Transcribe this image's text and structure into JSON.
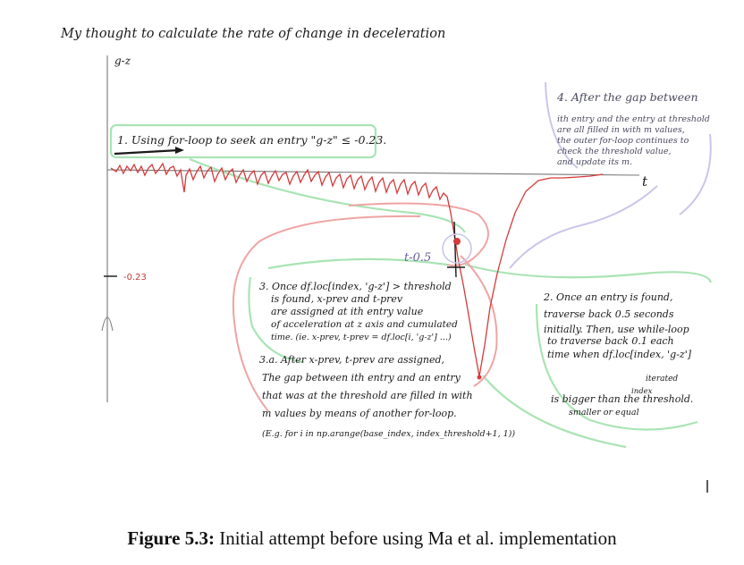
{
  "title": "My thought to calculate the rate of change in deceleration",
  "axis": {
    "y_label": "g-z",
    "x_label": "t",
    "threshold_label": "-0.23"
  },
  "point_label": "t-0.5",
  "notes": {
    "n1": "1. Using for-loop to seek an entry \"g-z\" ≤ -0.23.",
    "n2": [
      "2. Once an entry is found,",
      "traverse back 0.5 seconds",
      "initially. Then, use while-loop",
      "to traverse back 0.1 each",
      "time when df.loc[index, 'g-z']",
      "is bigger than the threshold.",
      "iterated",
      "index",
      "smaller or equal"
    ],
    "n3": [
      "3. Once df.loc[index, 'g-z'] > threshold",
      "is found, x-prev and t-prev",
      "are assigned at ith entry value",
      "of acceleration at z axis and cumulated",
      "time. (ie. x-prev, t-prev = df.loc[i, 'g-z'] ...)"
    ],
    "n3a": [
      "3.a. After x-prev, t-prev are assigned,",
      "The gap between ith entry and an entry",
      "that was at the threshold are filled in with",
      "m values by means of another for-loop.",
      "(E.g. for i in np.arange(base_index, index_threshold+1, 1))"
    ],
    "n4": [
      "4. After the gap between",
      "ith entry and the entry at threshold",
      "are all filled in with m values,",
      "the outer for-loop continues to",
      "check the threshold value,",
      "and update its m."
    ]
  },
  "caption": {
    "label": "Figure 5.3:",
    "text": "Initial attempt before using Ma et al. implementation"
  },
  "colors": {
    "ink": "#1a1a1a",
    "signal": "#d63a3a",
    "loop_red": "#f0a4a4",
    "loop_green": "#a9e4b4",
    "loop_violet": "#c9c6ea",
    "axis": "#666666"
  }
}
